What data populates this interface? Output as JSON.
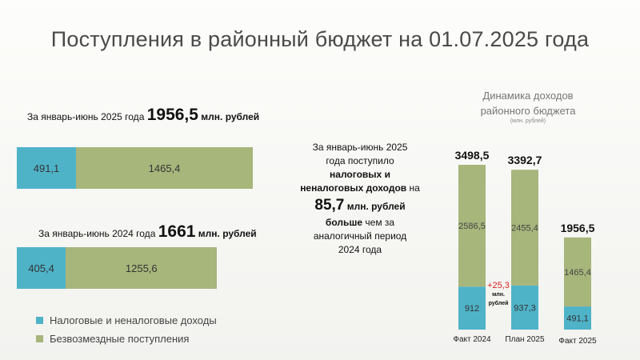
{
  "title": "Поступления в районный бюджет на 01.07.2025 года",
  "left": {
    "year2025": {
      "caption_prefix": "За январь-июнь 2025 года",
      "total": "1956,5",
      "unit": "млн. рублей",
      "tax_label": "491,1",
      "grant_label": "1465,4"
    },
    "year2024": {
      "caption_prefix": "За январь-июнь 2024 года",
      "total": "1661",
      "unit": "млн. рублей",
      "tax_label": "405,4",
      "grant_label": "1255,6"
    },
    "legend": {
      "tax": "Налоговые и неналоговые доходы",
      "grant": "Безвозмездные поступления"
    }
  },
  "middle": {
    "line1": "За январь-июнь 2025",
    "line2": "года поступило",
    "line3": "налоговых и",
    "line4a": "неналоговых доходов",
    "line4b": "на",
    "amount": "85,7",
    "amount_unit": "млн. рублей",
    "more_a": "больше",
    "more_b": "чем за",
    "line6": "аналогичный период",
    "line7": "2024 года"
  },
  "right": {
    "title_line1": "Динамика доходов",
    "title_line2": "районного бюджета",
    "subtitle": "(млн. рублей)",
    "diff_value": "+25,3",
    "diff_unit_1": "млн.",
    "diff_unit_2": "рублей"
  },
  "colors": {
    "tax": "#4fb3c8",
    "grant": "#a7b67b"
  },
  "chart_data": [
    {
      "type": "bar",
      "orientation": "horizontal",
      "stacked": true,
      "categories": [
        "2025",
        "2024"
      ],
      "series": [
        {
          "name": "Налоговые и неналоговые доходы",
          "values": [
            491.1,
            405.4
          ]
        },
        {
          "name": "Безвозмездные поступления",
          "values": [
            1465.4,
            1255.6
          ]
        }
      ],
      "totals": [
        1956.5,
        1661
      ],
      "legend": "bottom-left"
    },
    {
      "type": "bar",
      "stacked": true,
      "categories": [
        "Факт 2024",
        "План 2025",
        "Факт 2025"
      ],
      "series": [
        {
          "name": "Налоговые и неналоговые доходы",
          "values": [
            912,
            937.3,
            491.1
          ],
          "labels": [
            "912",
            "937,3",
            "491,1"
          ]
        },
        {
          "name": "Безвозмездные поступления",
          "values": [
            2586.5,
            2455.4,
            1465.4
          ],
          "labels": [
            "2586,5",
            "2455,4",
            "1465,4"
          ]
        }
      ],
      "totals": [
        3498.5,
        3392.7,
        1956.5
      ],
      "total_labels": [
        "3498,5",
        "3392,7",
        "1956,5"
      ],
      "title": "Динамика доходов районного бюджета",
      "subtitle": "(млн. рублей)"
    }
  ]
}
